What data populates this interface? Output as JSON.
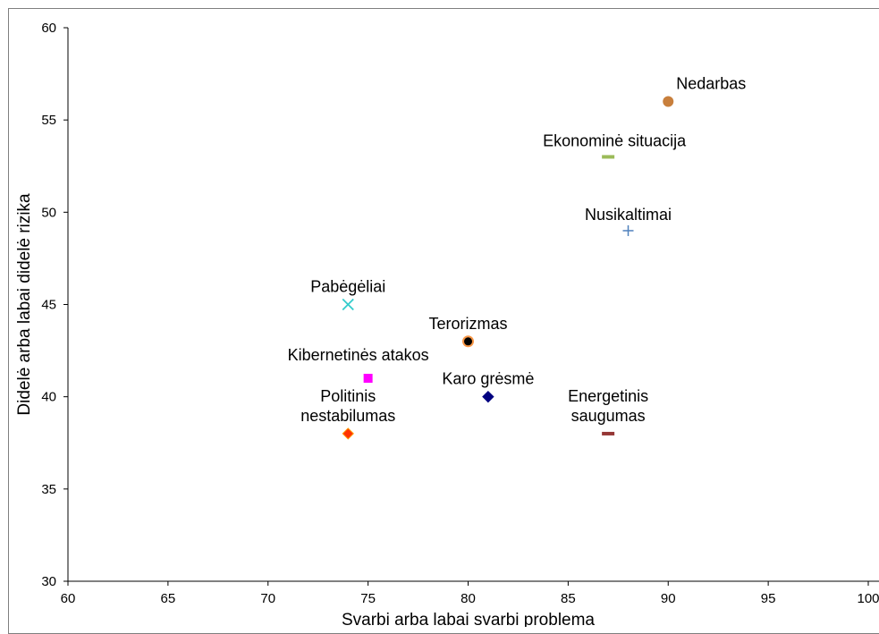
{
  "chart_data": {
    "type": "scatter",
    "title": "",
    "xlabel": "Svarbi arba labai svarbi problema",
    "ylabel": "Didelė arba labai didelė rizika",
    "xlim": [
      60,
      100
    ],
    "ylim": [
      30,
      60
    ],
    "xticks": [
      "60",
      "65",
      "70",
      "75",
      "80",
      "85",
      "90",
      "95",
      "100"
    ],
    "yticks": [
      "30",
      "35",
      "40",
      "45",
      "50",
      "55",
      "60"
    ],
    "grid": false,
    "legend": "none",
    "points": [
      {
        "label": [
          "Nedarbas"
        ],
        "x": 90,
        "y": 56,
        "marker": "circle",
        "color": "#C87F3C",
        "label_anchor": "above-right"
      },
      {
        "label": [
          "Ekonominė situacija"
        ],
        "x": 87,
        "y": 53,
        "marker": "dash",
        "color": "#9BBB59",
        "label_anchor": "above"
      },
      {
        "label": [
          "Nusikaltimai"
        ],
        "x": 88,
        "y": 49,
        "marker": "plus",
        "color": "#4F81BD",
        "label_anchor": "above"
      },
      {
        "label": [
          "Pabėgėliai"
        ],
        "x": 74,
        "y": 45,
        "marker": "x",
        "color": "#33CCCC",
        "label_anchor": "above"
      },
      {
        "label": [
          "Terorizmas"
        ],
        "x": 80,
        "y": 43,
        "marker": "ring",
        "color": "#000000",
        "stroke": "#F79646",
        "label_anchor": "above"
      },
      {
        "label": [
          "Kibernetinės atakos"
        ],
        "x": 75,
        "y": 41,
        "marker": "square",
        "color": "#FF00FF",
        "label_anchor": "above-left"
      },
      {
        "label": [
          "Karo grėsmė"
        ],
        "x": 81,
        "y": 40,
        "marker": "diamond",
        "color": "#000080",
        "label_anchor": "above"
      },
      {
        "label": [
          "Politinis",
          "nestabilumas"
        ],
        "x": 74,
        "y": 38,
        "marker": "diamond",
        "color": "#FF3300",
        "stroke": "#FF9900",
        "label_anchor": "above"
      },
      {
        "label": [
          "Energetinis",
          "saugumas"
        ],
        "x": 87,
        "y": 38,
        "marker": "dash",
        "color": "#953735",
        "label_anchor": "above"
      }
    ]
  }
}
